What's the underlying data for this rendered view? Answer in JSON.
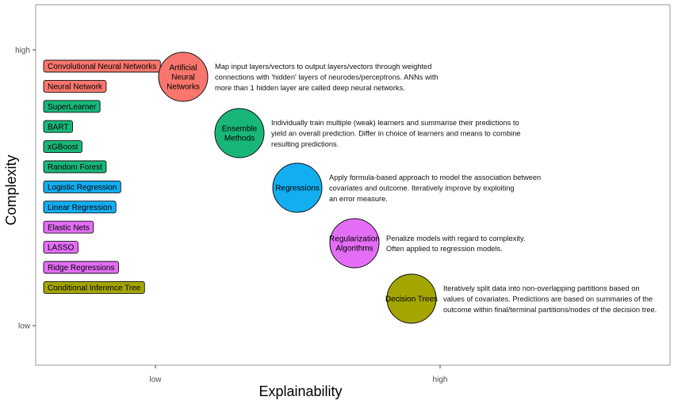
{
  "chart_data": {
    "type": "scatter",
    "xlabel": "Explainability",
    "ylabel": "Complexity",
    "x_ticks": [
      "low",
      "high"
    ],
    "y_ticks": [
      "high",
      "low"
    ],
    "grid": false,
    "colors": {
      "red": "#f8766d",
      "green": "#19b67a",
      "blue": "#12aef0",
      "magenta": "#e36ef5",
      "olive": "#a3a500"
    },
    "labels": [
      {
        "text": "Convolutional Neural Networks",
        "color": "red"
      },
      {
        "text": "Neural Network",
        "color": "red"
      },
      {
        "text": "SuperLearner",
        "color": "green"
      },
      {
        "text": "BART",
        "color": "green"
      },
      {
        "text": "xGBoost",
        "color": "green"
      },
      {
        "text": "Random Forest",
        "color": "green"
      },
      {
        "text": "Logistic Regression",
        "color": "blue"
      },
      {
        "text": "Linear Regression",
        "color": "blue"
      },
      {
        "text": "Elastic Nets",
        "color": "magenta"
      },
      {
        "text": "LASSO",
        "color": "magenta"
      },
      {
        "text": "Ridge Regressions",
        "color": "magenta"
      },
      {
        "text": "Conditional Inference Tree",
        "color": "olive"
      }
    ],
    "groups": [
      {
        "name_lines": [
          "Artificial",
          "Neural",
          "Networks"
        ],
        "color": "red",
        "desc_lines": [
          "Map input layers/vectors to output layers/vectors through weighted",
          "connections with 'hidden' layers of neurodes/perceptrons. ANNs with",
          "more than 1 hidden layer are called deep neural networks."
        ]
      },
      {
        "name_lines": [
          "Ensemble",
          "Methods"
        ],
        "color": "green",
        "desc_lines": [
          "Individually train multiple (weak) learners and summarise their predictions to",
          "yield an overall prediction. Differ in choice of learners and means to combine",
          "resulting predictions."
        ]
      },
      {
        "name_lines": [
          "Regressions"
        ],
        "color": "blue",
        "desc_lines": [
          "Apply formula-based approach to model the association between",
          "covariates and outcome. Iteratively improve by exploiting",
          "an error measure."
        ]
      },
      {
        "name_lines": [
          "Regularization",
          "Algorithms"
        ],
        "color": "magenta",
        "desc_lines": [
          "Penalize models with regard to complexity.",
          "Often applied to regression models."
        ]
      },
      {
        "name_lines": [
          "Decision Trees"
        ],
        "color": "olive",
        "desc_lines": [
          "Iteratively split data into non-overlapping partitions based on",
          "values of covariates. Predictions are based on summaries of the",
          "outcome within final/terminal partitions/nodes of the decision tree."
        ]
      }
    ]
  }
}
